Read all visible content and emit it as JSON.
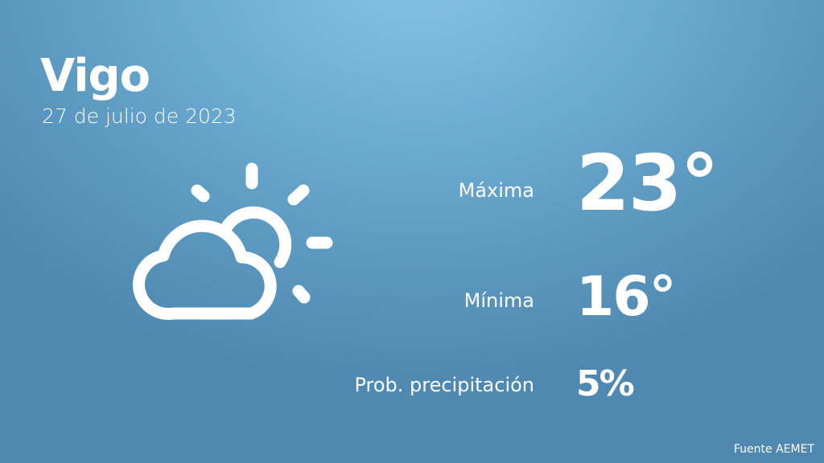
{
  "city": "Vigo",
  "date": "27 de julio de 2023",
  "weather_icon": "partly-cloudy-icon",
  "stats": [
    {
      "label": "Máxima",
      "value": "23°"
    },
    {
      "label": "Mínima",
      "value": "16°"
    },
    {
      "label": "Prob. precipitación",
      "value": "5%"
    }
  ],
  "source": "Fuente AEMET",
  "colors": {
    "background_top": "#86c3e6",
    "background_bottom": "#4f89b1",
    "text": "#ffffff"
  }
}
